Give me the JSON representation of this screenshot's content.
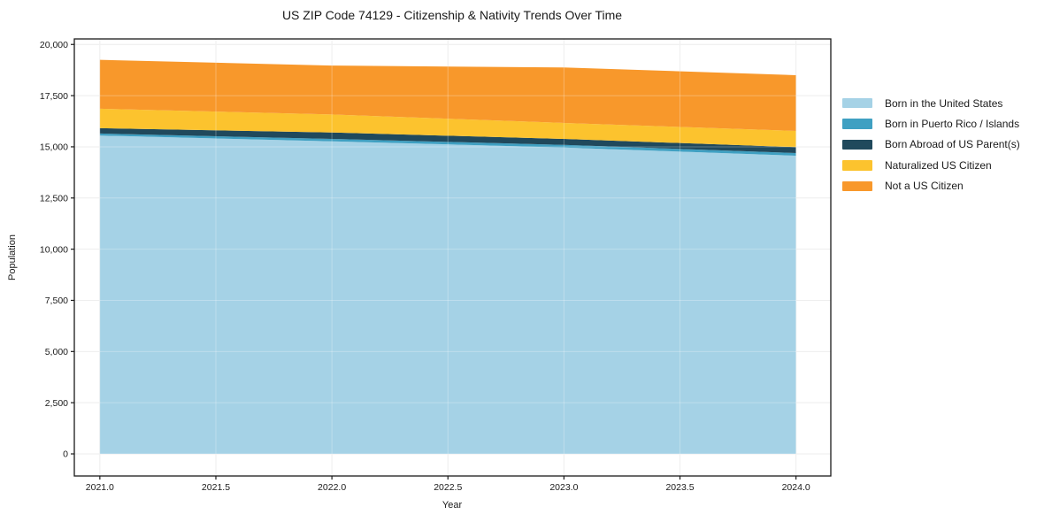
{
  "chart_data": {
    "type": "area",
    "stacked": true,
    "title": "US ZIP Code 74129 - Citizenship & Nativity Trends Over Time",
    "xlabel": "Year",
    "ylabel": "Population",
    "x": [
      2021,
      2022,
      2023,
      2024
    ],
    "series": [
      {
        "name": "Born in the United States",
        "color": "#a5d2e6",
        "values": [
          15550,
          15270,
          14965,
          14565
        ]
      },
      {
        "name": "Born in Puerto Rico / Islands",
        "color": "#3fa0c2",
        "values": [
          100,
          115,
          130,
          130
        ]
      },
      {
        "name": "Born Abroad of US Parent(s)",
        "color": "#20495c",
        "values": [
          260,
          315,
          290,
          290
        ]
      },
      {
        "name": "Naturalized US Citizen",
        "color": "#fcc32e",
        "values": [
          950,
          880,
          780,
          790
        ]
      },
      {
        "name": "Not a US Citizen",
        "color": "#f8982b",
        "values": [
          2390,
          2390,
          2710,
          2725
        ]
      }
    ],
    "stacked_totals": [
      19250,
      18970,
      18875,
      18500
    ],
    "x_tick_values": [
      2021.0,
      2021.5,
      2022.0,
      2022.5,
      2023.0,
      2023.5,
      2024.0
    ],
    "x_tick_labels": [
      "2021.0",
      "2021.5",
      "2022.0",
      "2022.5",
      "2023.0",
      "2023.5",
      "2024.0"
    ],
    "y_tick_values": [
      0,
      2500,
      5000,
      7500,
      10000,
      12500,
      15000,
      17500,
      20000
    ],
    "y_tick_labels": [
      "0",
      "2,500",
      "5,000",
      "7,500",
      "10,000",
      "12,500",
      "15,000",
      "17,500",
      "20,000"
    ],
    "xlim": [
      2020.89,
      2024.15
    ],
    "ylim": [
      -1080,
      20270
    ],
    "grid": true,
    "legend_position": "right-outside",
    "axis_color": "#1a1a1a",
    "grid_color": "#e8e8e8",
    "background_color": "#ffffff"
  }
}
